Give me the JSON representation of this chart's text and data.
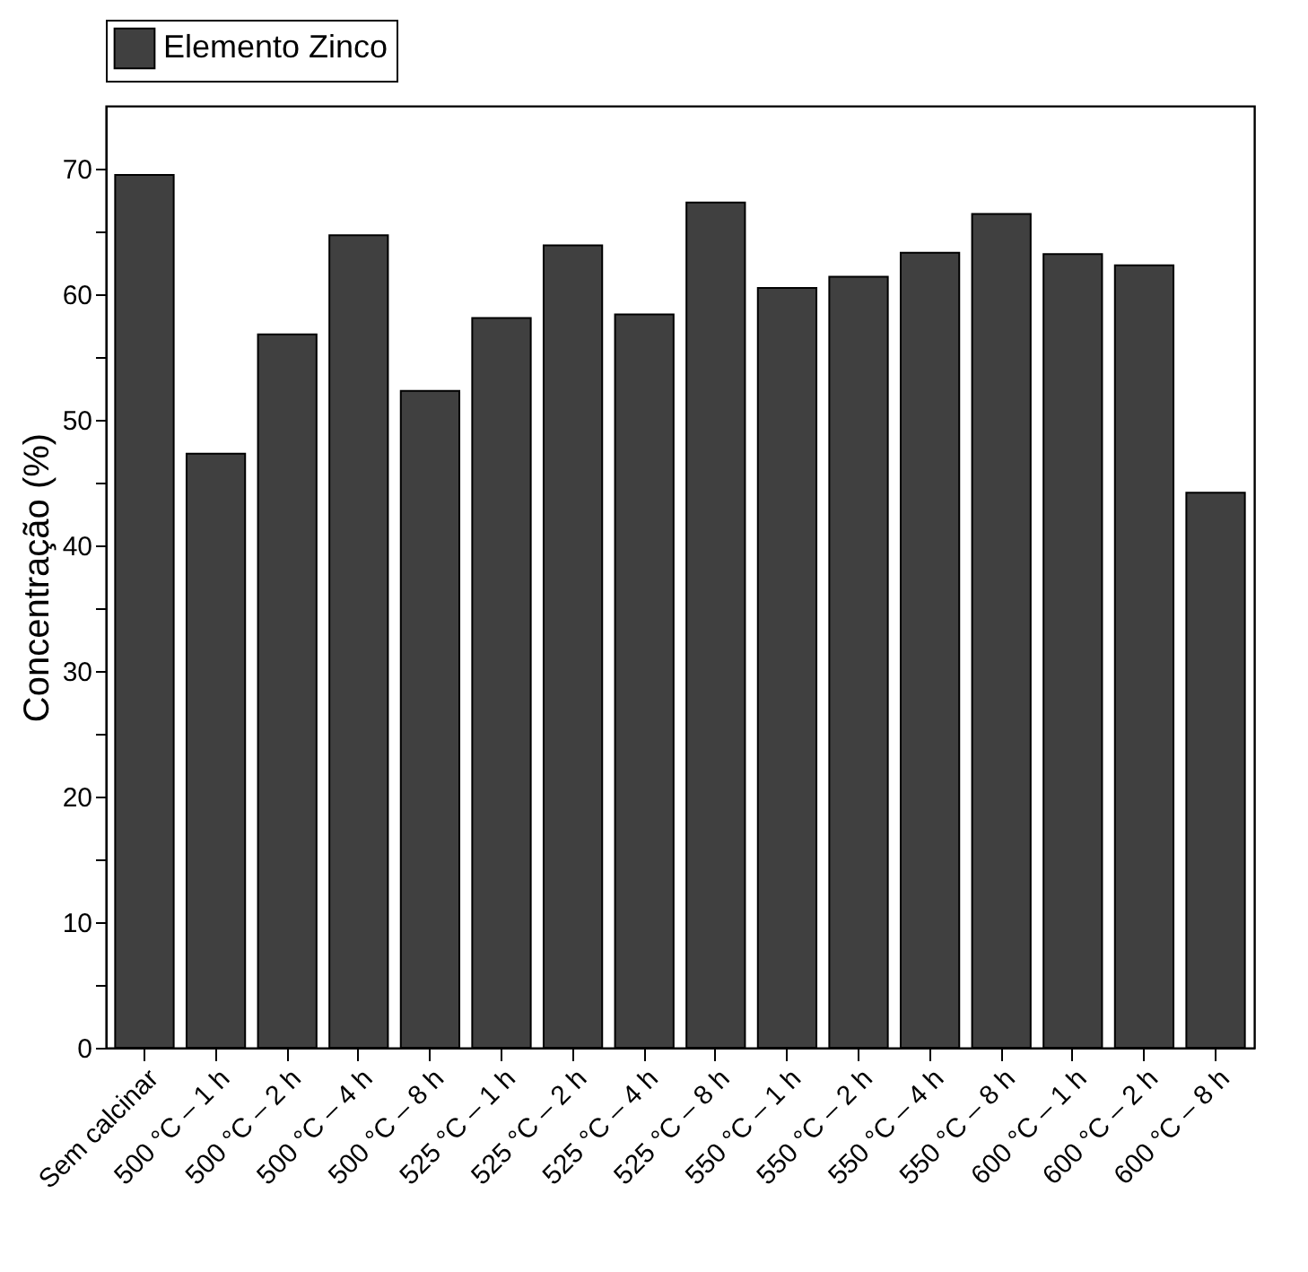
{
  "chart_data": {
    "type": "bar",
    "ylabel": "Concentração (%)",
    "categories": [
      "Sem calcinar",
      "500 °C – 1 h",
      "500 °C – 2 h",
      "500 °C – 4 h",
      "500 °C – 8 h",
      "525 °C – 1 h",
      "525 °C – 2 h",
      "525 °C – 4 h",
      "525 °C – 8 h",
      "550 °C – 1 h",
      "550 °C – 2 h",
      "550 °C – 4 h",
      "550 °C – 8 h",
      "600 °C – 1 h",
      "600 °C – 2 h",
      "600 °C – 8 h"
    ],
    "series": [
      {
        "name": "Elemento Zinco",
        "color": "#404040",
        "values": [
          69.5,
          47.3,
          56.8,
          64.7,
          52.3,
          58.1,
          63.9,
          58.4,
          67.3,
          60.5,
          61.4,
          63.3,
          66.4,
          63.2,
          62.3,
          44.2
        ]
      }
    ],
    "ylim": [
      0,
      75
    ],
    "yticks": [
      0,
      {
        "value": 5,
        "label": null
      },
      10,
      {
        "value": 15,
        "label": null
      },
      20,
      {
        "value": 25,
        "label": null
      },
      30,
      {
        "value": 35,
        "label": null
      },
      40,
      {
        "value": 45,
        "label": null
      },
      50,
      {
        "value": 55,
        "label": null
      },
      60,
      {
        "value": 65,
        "label": null
      },
      70
    ],
    "grid": false,
    "legend": "top"
  }
}
